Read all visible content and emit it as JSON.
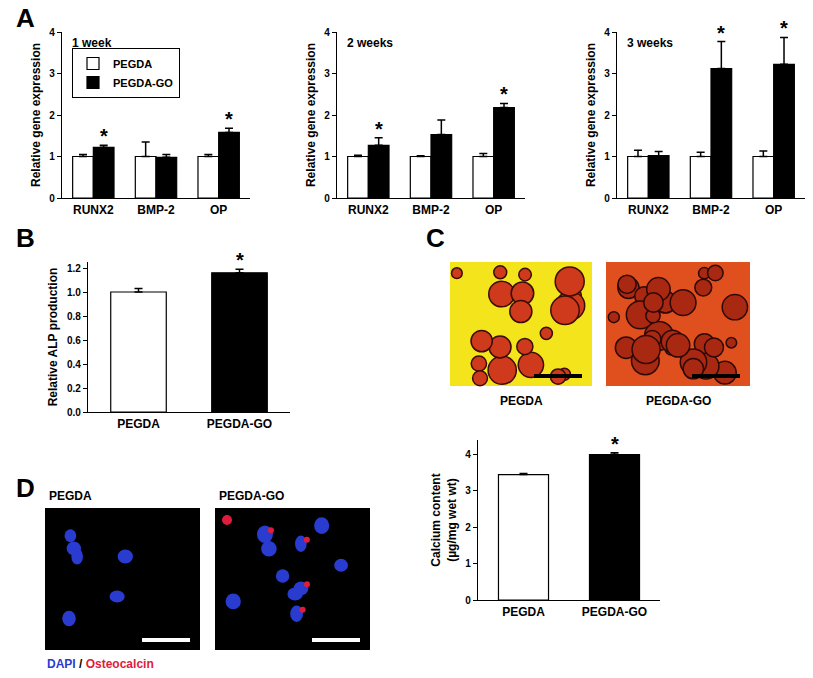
{
  "chart_data": [
    {
      "type": "bar",
      "title": "1 week",
      "ylabel": "Relative gene expression",
      "categories": [
        "RUNX2",
        "BMP-2",
        "OP"
      ],
      "series": [
        {
          "name": "PEGDA",
          "color": "#ffffff",
          "values": [
            1.0,
            1.0,
            1.0
          ],
          "errors": [
            0.05,
            0.35,
            0.05
          ]
        },
        {
          "name": "PEGDA-GO",
          "color": "#000000",
          "values": [
            1.22,
            0.98,
            1.58
          ],
          "errors": [
            0.05,
            0.07,
            0.1
          ]
        }
      ],
      "ylim": [
        0,
        4
      ],
      "yticks": [
        0,
        1,
        2,
        3,
        4
      ],
      "grid": false,
      "legend": "upper left",
      "annotations": [
        {
          "category": "RUNX2",
          "series": "PEGDA-GO",
          "text": "*"
        },
        {
          "category": "OP",
          "series": "PEGDA-GO",
          "text": "*"
        }
      ]
    },
    {
      "type": "bar",
      "title": "2 weeks",
      "ylabel": "Relative gene expression",
      "categories": [
        "RUNX2",
        "BMP-2",
        "OP"
      ],
      "series": [
        {
          "name": "PEGDA",
          "color": "#ffffff",
          "values": [
            1.0,
            1.0,
            1.0
          ],
          "errors": [
            0.03,
            0.02,
            0.07
          ]
        },
        {
          "name": "PEGDA-GO",
          "color": "#000000",
          "values": [
            1.27,
            1.53,
            2.18
          ],
          "errors": [
            0.18,
            0.35,
            0.1
          ]
        }
      ],
      "ylim": [
        0,
        4
      ],
      "yticks": [
        0,
        1,
        2,
        3,
        4
      ],
      "grid": false,
      "annotations": [
        {
          "category": "RUNX2",
          "series": "PEGDA-GO",
          "text": "*"
        },
        {
          "category": "OP",
          "series": "PEGDA-GO",
          "text": "*"
        }
      ]
    },
    {
      "type": "bar",
      "title": "3 weeks",
      "ylabel": "Relative gene expression",
      "categories": [
        "RUNX2",
        "BMP-2",
        "OP"
      ],
      "series": [
        {
          "name": "PEGDA",
          "color": "#ffffff",
          "values": [
            1.0,
            1.0,
            1.0
          ],
          "errors": [
            0.15,
            0.1,
            0.13
          ]
        },
        {
          "name": "PEGDA-GO",
          "color": "#000000",
          "values": [
            1.02,
            3.12,
            3.22
          ],
          "errors": [
            0.1,
            0.65,
            0.65
          ]
        }
      ],
      "ylim": [
        0,
        4
      ],
      "yticks": [
        0,
        1,
        2,
        3,
        4
      ],
      "grid": false,
      "annotations": [
        {
          "category": "BMP-2",
          "series": "PEGDA-GO",
          "text": "*"
        },
        {
          "category": "OP",
          "series": "PEGDA-GO",
          "text": "*"
        }
      ]
    },
    {
      "type": "bar",
      "ylabel": "Relative ALP production",
      "categories": [
        "PEGDA",
        "PEGDA-GO"
      ],
      "values": [
        1.0,
        1.16
      ],
      "errors": [
        0.03,
        0.03
      ],
      "colors": [
        "#ffffff",
        "#000000"
      ],
      "ylim": [
        0,
        1.25
      ],
      "yticks": [
        {
          "value": 0,
          "label": "0.0"
        },
        0.2,
        0.4,
        0.6,
        0.8,
        {
          "value": 1,
          "label": "1.0"
        },
        1.2
      ],
      "grid": false,
      "annotations": [
        {
          "category": "PEGDA-GO",
          "text": "*"
        }
      ]
    },
    {
      "type": "bar",
      "ylabel": [
        "Calcium content",
        "(µg/mg wet wt)"
      ],
      "categories": [
        "PEGDA",
        "PEGDA-GO"
      ],
      "values": [
        3.45,
        4.0
      ],
      "errors": [
        0.03,
        0.05
      ],
      "colors": [
        "#ffffff",
        "#000000"
      ],
      "ylim": [
        0,
        4.4
      ],
      "yticks": [
        0,
        1,
        2,
        3,
        4
      ],
      "grid": false,
      "annotations": [
        {
          "category": "PEGDA-GO",
          "text": "*"
        }
      ]
    }
  ],
  "panel_labels": [
    "A",
    "B",
    "C",
    "D"
  ],
  "images": {
    "C": {
      "labels": [
        "PEGDA",
        "PEGDA-GO"
      ]
    },
    "D": {
      "labels": [
        "PEGDA",
        "PEGDA-GO"
      ],
      "stains": [
        {
          "text": "DAPI",
          "color": "#2a3cd0"
        },
        {
          "text": "Osteocalcin",
          "color": "#e01c3c"
        }
      ],
      "separator": "/"
    }
  }
}
